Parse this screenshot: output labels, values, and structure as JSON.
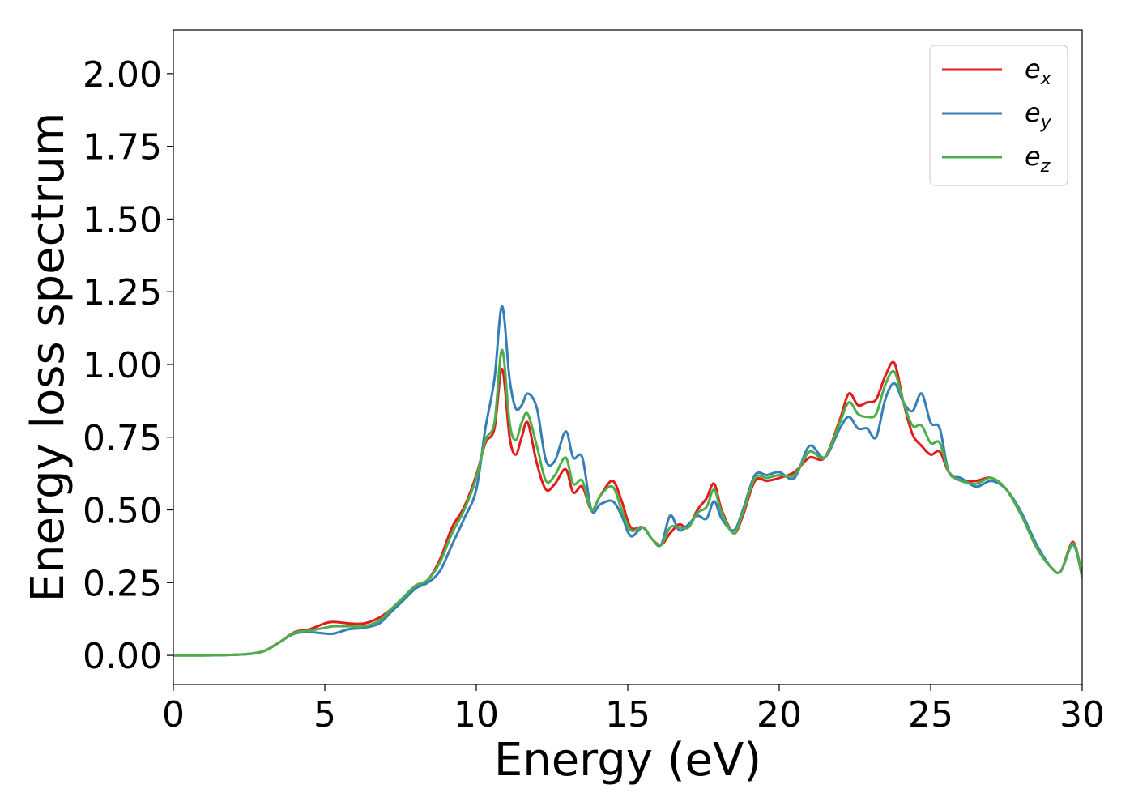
{
  "chart_data": {
    "type": "line",
    "title": "",
    "xlabel": "Energy (eV)",
    "ylabel": "Energy loss spectrum",
    "xlim": [
      0,
      30
    ],
    "ylim": [
      -0.1,
      2.15
    ],
    "xticks": [
      0,
      5,
      10,
      15,
      20,
      25,
      30
    ],
    "xtick_labels": [
      "0",
      "5",
      "10",
      "15",
      "20",
      "25",
      "30"
    ],
    "yticks": [
      0.0,
      0.25,
      0.5,
      0.75,
      1.0,
      1.25,
      1.5,
      1.75,
      2.0
    ],
    "ytick_labels": [
      "0.00",
      "0.25",
      "0.50",
      "0.75",
      "1.00",
      "1.25",
      "1.50",
      "1.75",
      "2.00"
    ],
    "grid": false,
    "legend_position": "top-right",
    "series": [
      {
        "name": "e_x",
        "label_main": "e",
        "label_sub": "x",
        "color": "#e41a1c",
        "x": [
          0,
          1,
          2,
          2.5,
          3,
          3.5,
          4,
          4.5,
          5,
          5.3,
          5.8,
          6.3,
          6.8,
          7.2,
          7.6,
          8,
          8.4,
          8.8,
          9.2,
          9.6,
          10,
          10.3,
          10.6,
          10.85,
          11.1,
          11.3,
          11.5,
          11.7,
          12,
          12.3,
          12.6,
          12.95,
          13.2,
          13.5,
          13.8,
          14.1,
          14.5,
          14.8,
          15.1,
          15.5,
          15.8,
          16.1,
          16.4,
          16.7,
          17,
          17.3,
          17.6,
          17.85,
          18.1,
          18.5,
          18.8,
          19.2,
          19.6,
          20,
          20.5,
          21,
          21.5,
          22,
          22.3,
          22.6,
          22.9,
          23.2,
          23.5,
          23.8,
          24.1,
          24.4,
          24.7,
          25,
          25.3,
          25.6,
          26,
          26.5,
          27,
          27.5,
          28,
          28.5,
          29,
          29.3,
          29.7,
          30
        ],
        "y": [
          0,
          0,
          0.002,
          0.005,
          0.015,
          0.045,
          0.08,
          0.09,
          0.11,
          0.115,
          0.11,
          0.11,
          0.13,
          0.16,
          0.2,
          0.24,
          0.26,
          0.33,
          0.44,
          0.51,
          0.62,
          0.73,
          0.78,
          0.985,
          0.75,
          0.69,
          0.75,
          0.8,
          0.66,
          0.57,
          0.59,
          0.64,
          0.56,
          0.58,
          0.5,
          0.55,
          0.6,
          0.53,
          0.44,
          0.44,
          0.4,
          0.38,
          0.42,
          0.45,
          0.44,
          0.5,
          0.54,
          0.59,
          0.5,
          0.42,
          0.48,
          0.6,
          0.6,
          0.61,
          0.63,
          0.68,
          0.68,
          0.81,
          0.9,
          0.86,
          0.87,
          0.88,
          0.96,
          1.005,
          0.87,
          0.76,
          0.72,
          0.69,
          0.7,
          0.63,
          0.6,
          0.6,
          0.61,
          0.57,
          0.48,
          0.37,
          0.3,
          0.29,
          0.39,
          0.27
        ]
      },
      {
        "name": "e_y",
        "label_main": "e",
        "label_sub": "y",
        "color": "#377eb8",
        "x": [
          0,
          1,
          2,
          2.5,
          3,
          3.5,
          4,
          4.5,
          5,
          5.3,
          5.8,
          6.3,
          6.8,
          7.2,
          7.6,
          8,
          8.4,
          8.8,
          9.2,
          9.6,
          10,
          10.3,
          10.6,
          10.85,
          11.1,
          11.3,
          11.5,
          11.7,
          12,
          12.3,
          12.6,
          12.95,
          13.2,
          13.5,
          13.8,
          14.1,
          14.5,
          14.8,
          15.1,
          15.5,
          15.8,
          16.1,
          16.4,
          16.7,
          17,
          17.3,
          17.6,
          17.85,
          18.1,
          18.5,
          18.8,
          19.2,
          19.6,
          20,
          20.5,
          21,
          21.5,
          22,
          22.3,
          22.6,
          22.9,
          23.2,
          23.5,
          23.8,
          24.1,
          24.4,
          24.7,
          25,
          25.3,
          25.6,
          26,
          26.5,
          27,
          27.5,
          28,
          28.5,
          29,
          29.3,
          29.7,
          30
        ],
        "y": [
          0,
          0,
          0.002,
          0.005,
          0.015,
          0.045,
          0.075,
          0.08,
          0.075,
          0.075,
          0.09,
          0.095,
          0.11,
          0.15,
          0.19,
          0.23,
          0.25,
          0.29,
          0.38,
          0.47,
          0.57,
          0.78,
          0.95,
          1.2,
          0.95,
          0.85,
          0.86,
          0.9,
          0.85,
          0.67,
          0.67,
          0.77,
          0.68,
          0.68,
          0.5,
          0.52,
          0.53,
          0.48,
          0.41,
          0.44,
          0.4,
          0.38,
          0.48,
          0.43,
          0.45,
          0.48,
          0.47,
          0.53,
          0.47,
          0.43,
          0.5,
          0.62,
          0.62,
          0.63,
          0.61,
          0.72,
          0.68,
          0.78,
          0.82,
          0.78,
          0.78,
          0.75,
          0.88,
          0.935,
          0.87,
          0.84,
          0.9,
          0.8,
          0.78,
          0.63,
          0.61,
          0.58,
          0.6,
          0.57,
          0.49,
          0.38,
          0.3,
          0.29,
          0.38,
          0.27
        ]
      },
      {
        "name": "e_z",
        "label_main": "e",
        "label_sub": "z",
        "color": "#4daf4a",
        "x": [
          0,
          1,
          2,
          2.5,
          3,
          3.5,
          4,
          4.5,
          5,
          5.3,
          5.8,
          6.3,
          6.8,
          7.2,
          7.6,
          8,
          8.4,
          8.8,
          9.2,
          9.6,
          10,
          10.3,
          10.6,
          10.85,
          11.1,
          11.3,
          11.5,
          11.7,
          12,
          12.3,
          12.6,
          12.95,
          13.2,
          13.5,
          13.8,
          14.1,
          14.5,
          14.8,
          15.1,
          15.5,
          15.8,
          16.1,
          16.4,
          16.7,
          17,
          17.3,
          17.6,
          17.85,
          18.1,
          18.5,
          18.8,
          19.2,
          19.6,
          20,
          20.5,
          21,
          21.5,
          22,
          22.3,
          22.6,
          22.9,
          23.2,
          23.5,
          23.8,
          24.1,
          24.4,
          24.7,
          25,
          25.3,
          25.6,
          26,
          26.5,
          27,
          27.5,
          28,
          28.5,
          29,
          29.3,
          29.7,
          30
        ],
        "y": [
          0,
          0,
          0.002,
          0.005,
          0.015,
          0.045,
          0.078,
          0.085,
          0.095,
          0.1,
          0.1,
          0.1,
          0.12,
          0.16,
          0.2,
          0.24,
          0.26,
          0.32,
          0.42,
          0.5,
          0.61,
          0.74,
          0.8,
          1.05,
          0.8,
          0.74,
          0.8,
          0.83,
          0.72,
          0.6,
          0.62,
          0.68,
          0.59,
          0.6,
          0.5,
          0.55,
          0.58,
          0.5,
          0.43,
          0.44,
          0.4,
          0.38,
          0.44,
          0.44,
          0.44,
          0.49,
          0.51,
          0.57,
          0.49,
          0.42,
          0.49,
          0.61,
          0.61,
          0.62,
          0.62,
          0.7,
          0.68,
          0.8,
          0.87,
          0.83,
          0.82,
          0.83,
          0.93,
          0.975,
          0.87,
          0.79,
          0.79,
          0.73,
          0.73,
          0.63,
          0.6,
          0.59,
          0.61,
          0.57,
          0.48,
          0.37,
          0.3,
          0.29,
          0.385,
          0.27
        ]
      }
    ]
  }
}
